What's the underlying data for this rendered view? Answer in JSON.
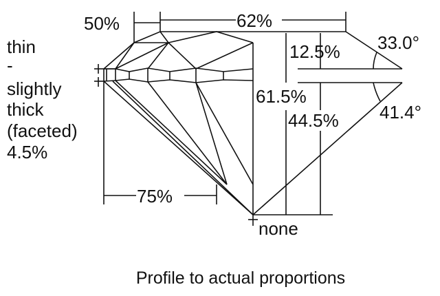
{
  "diagram": {
    "girdle_label": [
      "thin",
      "-",
      "slightly",
      "thick",
      "(faceted)",
      "4.5%"
    ],
    "table_width_pct": "62%",
    "star_length_pct": "50%",
    "crown_height_pct": "12.5%",
    "crown_angle": "33.0°",
    "total_depth_pct": "61.5%",
    "pavilion_depth_pct": "44.5%",
    "pavilion_angle": "41.4°",
    "lower_half_pct": "75%",
    "culet": "none",
    "caption": "Profile to actual proportions"
  }
}
